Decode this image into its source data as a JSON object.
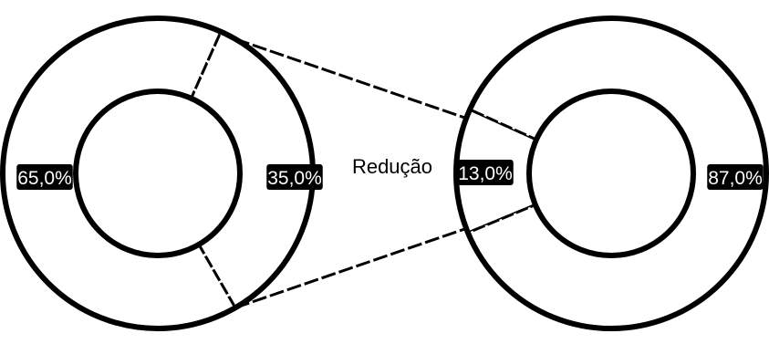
{
  "chart_data": {
    "type": "pie",
    "annotation": "Redução",
    "charts": [
      {
        "slices": [
          {
            "label": "65,0%",
            "value": 65.0
          },
          {
            "label": "35,0%",
            "value": 35.0
          }
        ]
      },
      {
        "slices": [
          {
            "label": "13,0%",
            "value": 13.0
          },
          {
            "label": "87,0%",
            "value": 87.0
          }
        ]
      }
    ]
  },
  "colors": {
    "ring_fill": "#ffffff",
    "outline": "#000000",
    "label_background": "#000000",
    "label_text": "#ffffff"
  }
}
